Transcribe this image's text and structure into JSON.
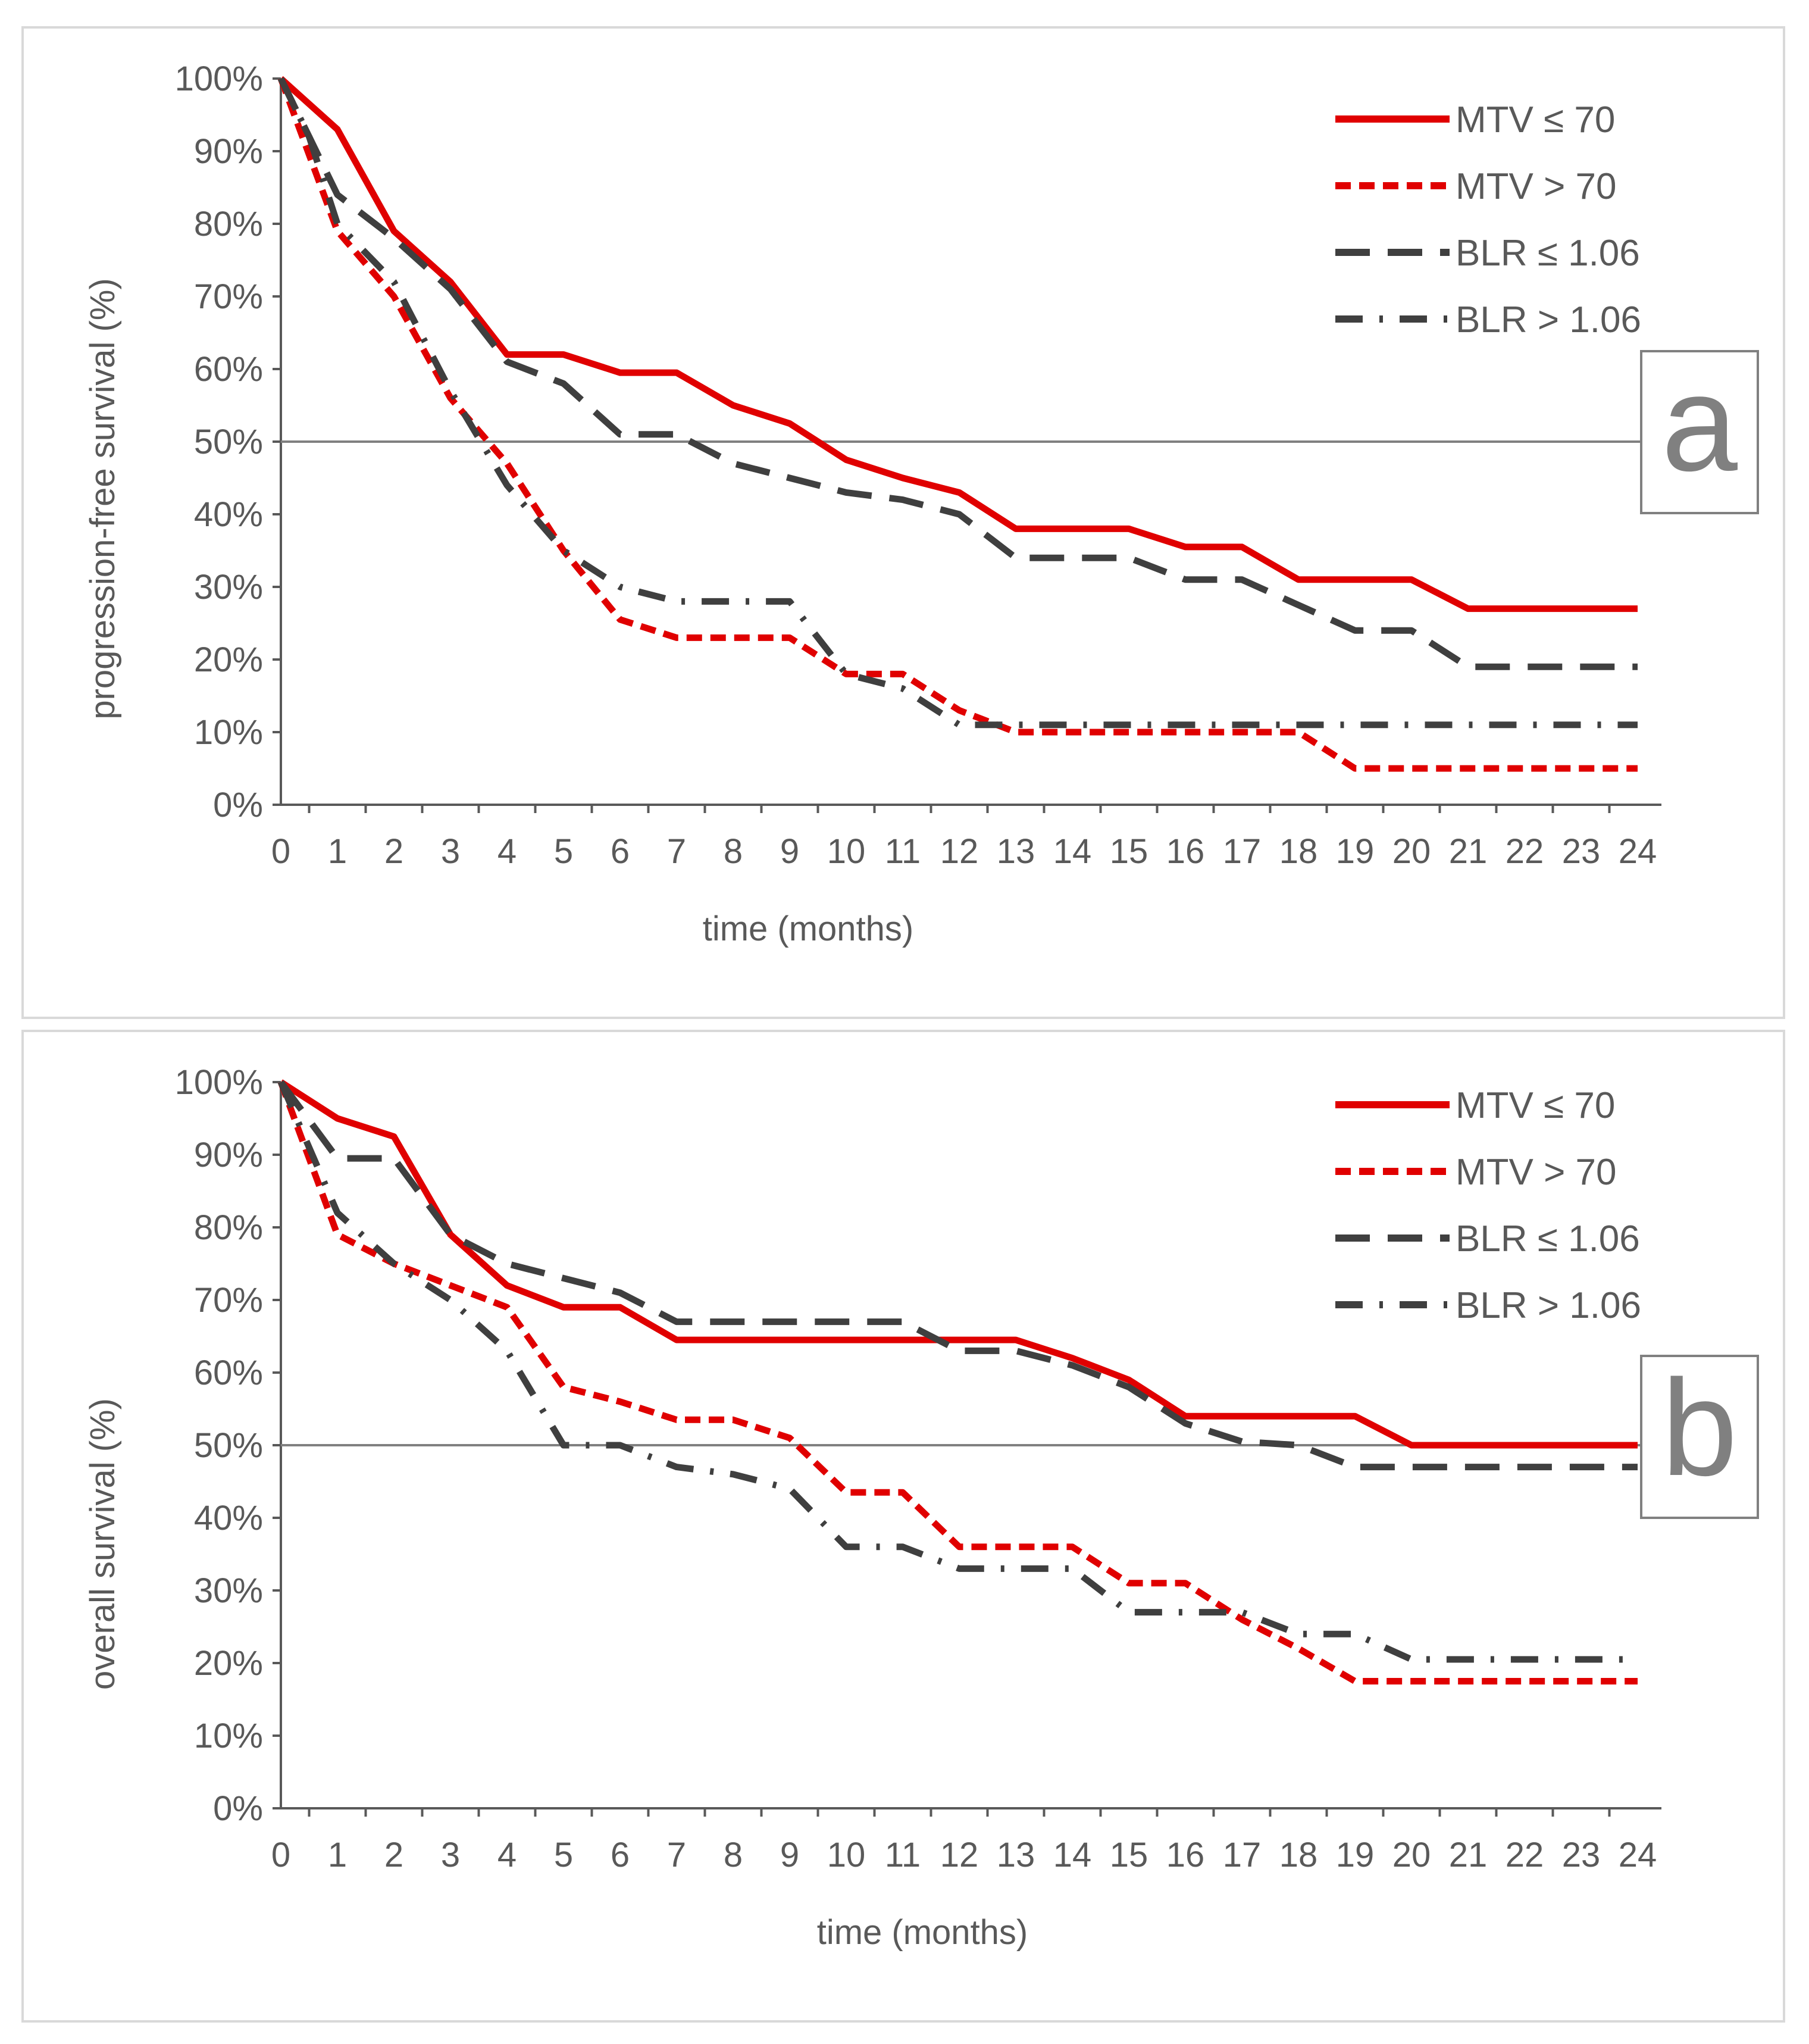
{
  "colors": {
    "red": "#e00000",
    "dark": "#3f3f3f",
    "axis": "#595959",
    "ref": "#808080"
  },
  "chart_data": [
    {
      "type": "line",
      "panel_label": "a",
      "xlabel": "time (months)",
      "ylabel": "progression-free survival (%)",
      "xlim": [
        0,
        24
      ],
      "ylim": [
        0,
        100
      ],
      "x_ticks": [
        "0",
        "1",
        "2",
        "3",
        "4",
        "5",
        "6",
        "7",
        "8",
        "9",
        "10",
        "11",
        "12",
        "13",
        "14",
        "15",
        "16",
        "17",
        "18",
        "19",
        "20",
        "21",
        "22",
        "23",
        "24"
      ],
      "y_ticks": [
        "0%",
        "10%",
        "20%",
        "30%",
        "40%",
        "50%",
        "60%",
        "70%",
        "80%",
        "90%",
        "100%"
      ],
      "reference_line": 50,
      "legend_position": "top-right",
      "series": [
        {
          "name": "MTV ≤ 70",
          "style": "solid-red",
          "points": [
            [
              0,
              100
            ],
            [
              1,
              93
            ],
            [
              2,
              79
            ],
            [
              3,
              72
            ],
            [
              4,
              62
            ],
            [
              5,
              62
            ],
            [
              6,
              59.5
            ],
            [
              7,
              59.5
            ],
            [
              8,
              55
            ],
            [
              9,
              52.5
            ],
            [
              10,
              47.5
            ],
            [
              11,
              45
            ],
            [
              12,
              43
            ],
            [
              13,
              38
            ],
            [
              14,
              38
            ],
            [
              15,
              38
            ],
            [
              16,
              35.5
            ],
            [
              17,
              35.5
            ],
            [
              18,
              31
            ],
            [
              19,
              31
            ],
            [
              20,
              31
            ],
            [
              21,
              27
            ],
            [
              22,
              27
            ],
            [
              23,
              27
            ],
            [
              24,
              27
            ]
          ]
        },
        {
          "name": "MTV > 70",
          "style": "dashed-red",
          "points": [
            [
              0,
              100
            ],
            [
              1,
              79
            ],
            [
              2,
              70
            ],
            [
              3,
              56
            ],
            [
              4,
              47
            ],
            [
              5,
              35
            ],
            [
              6,
              25.5
            ],
            [
              7,
              23
            ],
            [
              8,
              23
            ],
            [
              9,
              23
            ],
            [
              10,
              18
            ],
            [
              11,
              18
            ],
            [
              12,
              13
            ],
            [
              13,
              10
            ],
            [
              14,
              10
            ],
            [
              15,
              10
            ],
            [
              16,
              10
            ],
            [
              17,
              10
            ],
            [
              18,
              10
            ],
            [
              19,
              5
            ],
            [
              20,
              5
            ],
            [
              21,
              5
            ],
            [
              22,
              5
            ],
            [
              23,
              5
            ],
            [
              24,
              5
            ]
          ]
        },
        {
          "name": "BLR ≤ 1.06",
          "style": "longdash-dark",
          "points": [
            [
              0,
              100
            ],
            [
              1,
              84
            ],
            [
              2,
              78
            ],
            [
              3,
              71
            ],
            [
              4,
              61
            ],
            [
              5,
              58
            ],
            [
              6,
              51
            ],
            [
              7,
              51
            ],
            [
              8,
              47
            ],
            [
              9,
              45
            ],
            [
              10,
              43
            ],
            [
              11,
              42
            ],
            [
              12,
              40
            ],
            [
              13,
              34
            ],
            [
              14,
              34
            ],
            [
              15,
              34
            ],
            [
              16,
              31
            ],
            [
              17,
              31
            ],
            [
              18,
              27.5
            ],
            [
              19,
              24
            ],
            [
              20,
              24
            ],
            [
              21,
              19
            ],
            [
              22,
              19
            ],
            [
              23,
              19
            ],
            [
              24,
              19
            ]
          ]
        },
        {
          "name": "BLR > 1.06",
          "style": "dashdot-dark",
          "points": [
            [
              0,
              100
            ],
            [
              0.5,
              92
            ],
            [
              1,
              80
            ],
            [
              2,
              72
            ],
            [
              3,
              57
            ],
            [
              4,
              44
            ],
            [
              5,
              35
            ],
            [
              6,
              30
            ],
            [
              7,
              28
            ],
            [
              8,
              28
            ],
            [
              9,
              28
            ],
            [
              10,
              18
            ],
            [
              11,
              16
            ],
            [
              12,
              11
            ],
            [
              13,
              11
            ],
            [
              14,
              11
            ],
            [
              15,
              11
            ],
            [
              16,
              11
            ],
            [
              17,
              11
            ],
            [
              18,
              11
            ],
            [
              19,
              11
            ],
            [
              20,
              11
            ],
            [
              21,
              11
            ],
            [
              22,
              11
            ],
            [
              23,
              11
            ],
            [
              24,
              11
            ]
          ]
        }
      ]
    },
    {
      "type": "line",
      "panel_label": "b",
      "xlabel": "time (months)",
      "ylabel": "overall survival (%)",
      "xlim": [
        0,
        24
      ],
      "ylim": [
        0,
        100
      ],
      "x_ticks": [
        "0",
        "1",
        "2",
        "3",
        "4",
        "5",
        "6",
        "7",
        "8",
        "9",
        "10",
        "11",
        "12",
        "13",
        "14",
        "15",
        "16",
        "17",
        "18",
        "19",
        "20",
        "21",
        "22",
        "23",
        "24"
      ],
      "y_ticks": [
        "0%",
        "10%",
        "20%",
        "30%",
        "40%",
        "50%",
        "60%",
        "70%",
        "80%",
        "90%",
        "100%"
      ],
      "reference_line": 50,
      "legend_position": "top-right",
      "series": [
        {
          "name": "MTV ≤ 70",
          "style": "solid-red",
          "points": [
            [
              0,
              100
            ],
            [
              1,
              95
            ],
            [
              2,
              92.5
            ],
            [
              3,
              79
            ],
            [
              4,
              72
            ],
            [
              5,
              69
            ],
            [
              6,
              69
            ],
            [
              7,
              64.5
            ],
            [
              8,
              64.5
            ],
            [
              9,
              64.5
            ],
            [
              10,
              64.5
            ],
            [
              11,
              64.5
            ],
            [
              12,
              64.5
            ],
            [
              13,
              64.5
            ],
            [
              14,
              62
            ],
            [
              15,
              59
            ],
            [
              16,
              54
            ],
            [
              17,
              54
            ],
            [
              18,
              54
            ],
            [
              19,
              54
            ],
            [
              20,
              50
            ],
            [
              21,
              50
            ],
            [
              22,
              50
            ],
            [
              23,
              50
            ],
            [
              24,
              50
            ]
          ]
        },
        {
          "name": "MTV > 70",
          "style": "dashed-red",
          "points": [
            [
              0,
              100
            ],
            [
              1,
              79
            ],
            [
              2,
              75
            ],
            [
              3,
              72
            ],
            [
              4,
              69
            ],
            [
              5,
              58
            ],
            [
              6,
              56
            ],
            [
              7,
              53.5
            ],
            [
              8,
              53.5
            ],
            [
              9,
              51
            ],
            [
              10,
              43.5
            ],
            [
              11,
              43.5
            ],
            [
              12,
              36
            ],
            [
              13,
              36
            ],
            [
              14,
              36
            ],
            [
              15,
              31
            ],
            [
              16,
              31
            ],
            [
              17,
              26
            ],
            [
              18,
              22
            ],
            [
              19,
              17.5
            ],
            [
              20,
              17.5
            ],
            [
              21,
              17.5
            ],
            [
              22,
              17.5
            ],
            [
              23,
              17.5
            ],
            [
              24,
              17.5
            ]
          ]
        },
        {
          "name": "BLR ≤ 1.06",
          "style": "longdash-dark",
          "points": [
            [
              0,
              100
            ],
            [
              1,
              89.5
            ],
            [
              2,
              89.5
            ],
            [
              3,
              79
            ],
            [
              4,
              75
            ],
            [
              5,
              73
            ],
            [
              6,
              71
            ],
            [
              7,
              67
            ],
            [
              8,
              67
            ],
            [
              9,
              67
            ],
            [
              10,
              67
            ],
            [
              11,
              67
            ],
            [
              12,
              63
            ],
            [
              13,
              63
            ],
            [
              14,
              61
            ],
            [
              15,
              58
            ],
            [
              16,
              53
            ],
            [
              17,
              50.5
            ],
            [
              18,
              50
            ],
            [
              19,
              47
            ],
            [
              20,
              47
            ],
            [
              21,
              47
            ],
            [
              22,
              47
            ],
            [
              23,
              47
            ],
            [
              24,
              47
            ]
          ]
        },
        {
          "name": "BLR > 1.06",
          "style": "dashdot-dark",
          "points": [
            [
              0,
              100
            ],
            [
              1,
              82
            ],
            [
              2,
              75
            ],
            [
              3,
              70
            ],
            [
              4,
              63
            ],
            [
              5,
              50
            ],
            [
              6,
              50
            ],
            [
              7,
              47
            ],
            [
              8,
              46
            ],
            [
              9,
              44
            ],
            [
              10,
              36
            ],
            [
              11,
              36
            ],
            [
              12,
              33
            ],
            [
              13,
              33
            ],
            [
              14,
              33
            ],
            [
              15,
              27
            ],
            [
              16,
              27
            ],
            [
              17,
              27
            ],
            [
              18,
              24
            ],
            [
              19,
              24
            ],
            [
              20,
              20.5
            ],
            [
              21,
              20.5
            ],
            [
              22,
              20.5
            ],
            [
              23,
              20.5
            ],
            [
              24,
              20.5
            ]
          ]
        }
      ]
    }
  ]
}
